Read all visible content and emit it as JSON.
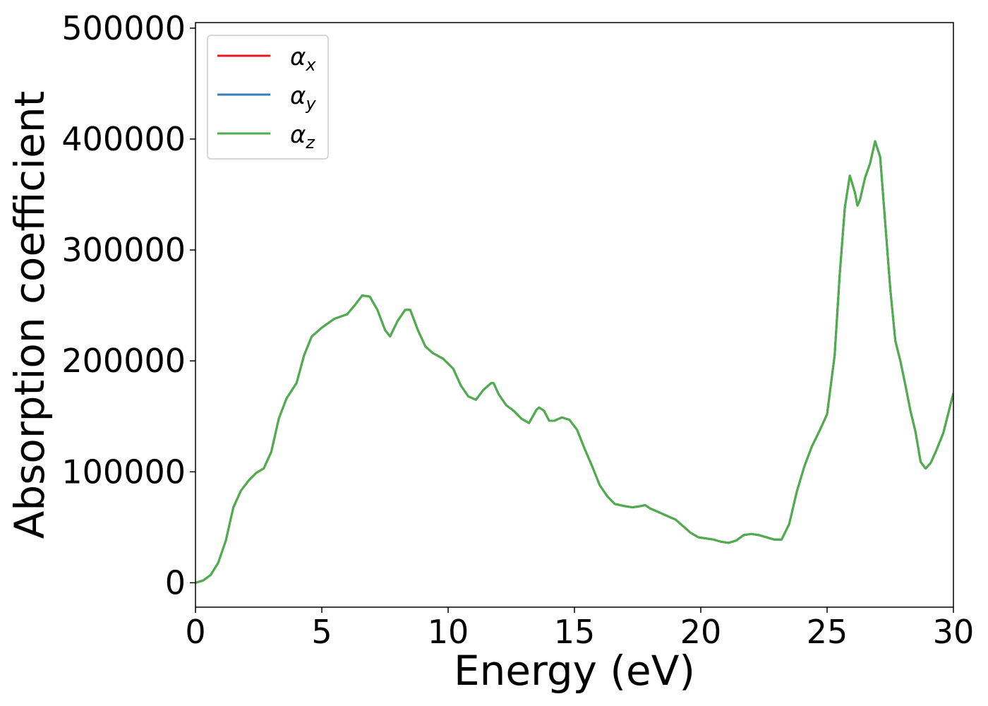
{
  "chart_data": {
    "type": "line",
    "title": "",
    "xlabel": "Energy (eV)",
    "ylabel": "Absorption coefficient",
    "xlim": [
      0,
      30
    ],
    "ylim": [
      -22000,
      505000
    ],
    "xticks": [
      0,
      5,
      10,
      15,
      20,
      25,
      30
    ],
    "xtick_labels": [
      "0",
      "5",
      "10",
      "15",
      "20",
      "25",
      "30"
    ],
    "yticks": [
      0,
      100000,
      200000,
      300000,
      400000,
      500000
    ],
    "ytick_labels": [
      "0",
      "100000",
      "200000",
      "300000",
      "400000",
      "500000"
    ],
    "grid": false,
    "legend_position": "top-left",
    "x": [
      0,
      0.3,
      0.6,
      0.9,
      1.2,
      1.5,
      1.8,
      2.1,
      2.4,
      2.7,
      3.0,
      3.3,
      3.6,
      4.0,
      4.3,
      4.6,
      5.0,
      5.5,
      6.0,
      6.3,
      6.6,
      6.9,
      7.2,
      7.5,
      7.7,
      8.0,
      8.3,
      8.5,
      8.8,
      9.1,
      9.4,
      9.8,
      10.2,
      10.5,
      10.8,
      11.1,
      11.4,
      11.7,
      11.8,
      12.0,
      12.3,
      12.6,
      12.9,
      13.2,
      13.5,
      13.6,
      13.8,
      14.0,
      14.2,
      14.5,
      14.8,
      15.1,
      15.4,
      15.7,
      16.0,
      16.3,
      16.6,
      17.0,
      17.3,
      17.6,
      17.8,
      18.0,
      18.3,
      18.7,
      19.0,
      19.3,
      19.6,
      19.9,
      20.2,
      20.5,
      20.8,
      21.1,
      21.4,
      21.7,
      22.0,
      22.3,
      22.6,
      22.9,
      23.2,
      23.5,
      23.8,
      24.1,
      24.4,
      24.7,
      25.0,
      25.3,
      25.5,
      25.7,
      25.9,
      26.1,
      26.2,
      26.3,
      26.5,
      26.7,
      26.9,
      27.1,
      27.3,
      27.5,
      27.7,
      27.9,
      28.1,
      28.3,
      28.5,
      28.7,
      28.9,
      29.1,
      29.3,
      29.6,
      30.0
    ],
    "series": [
      {
        "name": "α",
        "sub": "x",
        "color": "#e41a1c",
        "values": [
          0,
          2000,
          7000,
          18000,
          38000,
          68000,
          83000,
          92000,
          99000,
          103000,
          118000,
          148000,
          166000,
          180000,
          205000,
          222000,
          230000,
          238000,
          242000,
          250000,
          259000,
          258000,
          246000,
          228000,
          222000,
          236000,
          246000,
          246000,
          228000,
          213000,
          207000,
          202000,
          193000,
          178000,
          168000,
          165000,
          174000,
          180000,
          180000,
          170000,
          160000,
          155000,
          148000,
          144000,
          156000,
          158000,
          155000,
          146000,
          146000,
          149000,
          147000,
          138000,
          121000,
          105000,
          88000,
          78000,
          71000,
          69000,
          68000,
          69000,
          70000,
          67000,
          64000,
          60000,
          57000,
          51000,
          45000,
          41000,
          40000,
          39000,
          37000,
          36000,
          38000,
          43000,
          44000,
          43000,
          41000,
          39000,
          39000,
          53000,
          82000,
          105000,
          123000,
          137000,
          152000,
          205000,
          278000,
          338000,
          367000,
          352000,
          340000,
          345000,
          365000,
          378000,
          398000,
          384000,
          325000,
          265000,
          218000,
          200000,
          178000,
          155000,
          136000,
          109000,
          103000,
          108000,
          118000,
          135000,
          171000
        ]
      },
      {
        "name": "α",
        "sub": "y",
        "color": "#377eb8",
        "values": [
          0,
          2000,
          7000,
          18000,
          38000,
          68000,
          83000,
          92000,
          99000,
          103000,
          118000,
          148000,
          166000,
          180000,
          205000,
          222000,
          230000,
          238000,
          242000,
          250000,
          259000,
          258000,
          246000,
          228000,
          222000,
          236000,
          246000,
          246000,
          228000,
          213000,
          207000,
          202000,
          193000,
          178000,
          168000,
          165000,
          174000,
          180000,
          180000,
          170000,
          160000,
          155000,
          148000,
          144000,
          156000,
          158000,
          155000,
          146000,
          146000,
          149000,
          147000,
          138000,
          121000,
          105000,
          88000,
          78000,
          71000,
          69000,
          68000,
          69000,
          70000,
          67000,
          64000,
          60000,
          57000,
          51000,
          45000,
          41000,
          40000,
          39000,
          37000,
          36000,
          38000,
          43000,
          44000,
          43000,
          41000,
          39000,
          39000,
          53000,
          82000,
          105000,
          123000,
          137000,
          152000,
          205000,
          278000,
          338000,
          367000,
          352000,
          340000,
          345000,
          365000,
          378000,
          398000,
          384000,
          325000,
          265000,
          218000,
          200000,
          178000,
          155000,
          136000,
          109000,
          103000,
          108000,
          118000,
          135000,
          171000
        ]
      },
      {
        "name": "α",
        "sub": "z",
        "color": "#4daf4a",
        "values": [
          0,
          2000,
          7000,
          18000,
          38000,
          68000,
          83000,
          92000,
          99000,
          103000,
          118000,
          148000,
          166000,
          180000,
          205000,
          222000,
          230000,
          238000,
          242000,
          250000,
          259000,
          258000,
          246000,
          228000,
          222000,
          236000,
          246000,
          246000,
          228000,
          213000,
          207000,
          202000,
          193000,
          178000,
          168000,
          165000,
          174000,
          180000,
          180000,
          170000,
          160000,
          155000,
          148000,
          144000,
          156000,
          158000,
          155000,
          146000,
          146000,
          149000,
          147000,
          138000,
          121000,
          105000,
          88000,
          78000,
          71000,
          69000,
          68000,
          69000,
          70000,
          67000,
          64000,
          60000,
          57000,
          51000,
          45000,
          41000,
          40000,
          39000,
          37000,
          36000,
          38000,
          43000,
          44000,
          43000,
          41000,
          39000,
          39000,
          53000,
          82000,
          105000,
          123000,
          137000,
          152000,
          205000,
          278000,
          338000,
          367000,
          352000,
          340000,
          345000,
          365000,
          378000,
          398000,
          384000,
          325000,
          265000,
          218000,
          200000,
          178000,
          155000,
          136000,
          109000,
          103000,
          108000,
          118000,
          135000,
          171000
        ]
      }
    ]
  }
}
